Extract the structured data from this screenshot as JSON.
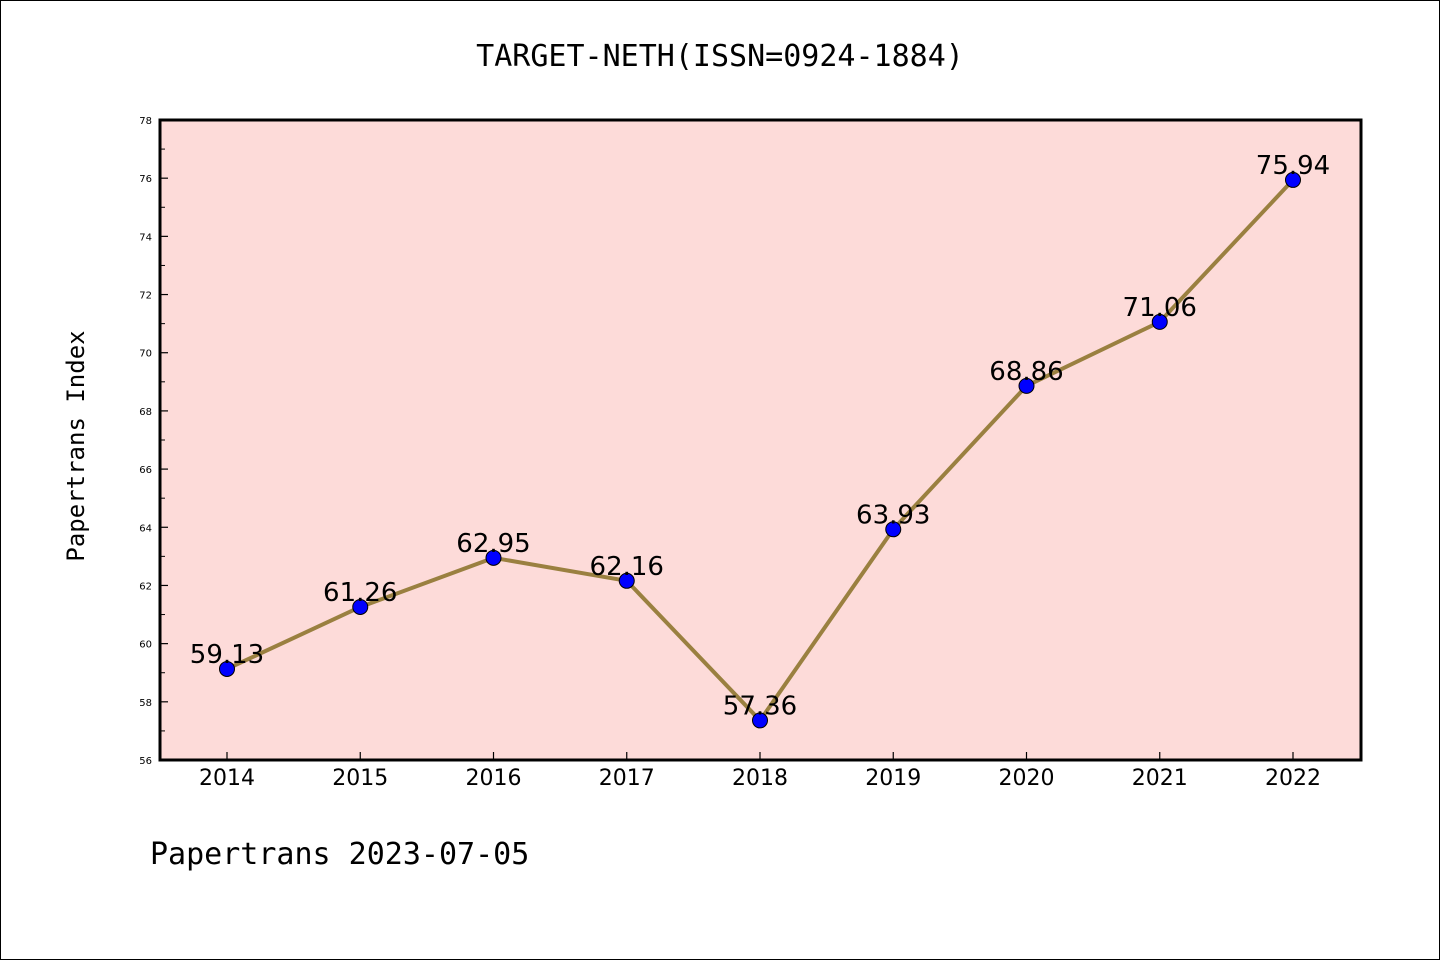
{
  "chart_data": {
    "type": "line",
    "title": "TARGET-NETH(ISSN=0924-1884)",
    "xlabel": "",
    "ylabel": "Papertrans Index",
    "categories": [
      "2014",
      "2015",
      "2016",
      "2017",
      "2018",
      "2019",
      "2020",
      "2021",
      "2022"
    ],
    "series": [
      {
        "values": [
          59.13,
          61.26,
          62.95,
          62.16,
          57.36,
          63.93,
          68.86,
          71.06,
          75.94
        ]
      }
    ],
    "data_labels": [
      "59.13",
      "61.26",
      "62.95",
      "62.16",
      "57.36",
      "63.93",
      "68.86",
      "71.06",
      "75.94"
    ],
    "ylim": [
      56,
      78
    ],
    "yticks": [
      "56",
      "58",
      "60",
      "62",
      "64",
      "66",
      "68",
      "70",
      "72",
      "74",
      "76",
      "78"
    ],
    "footer": "Papertrans 2023-07-05",
    "grid": false,
    "colors": {
      "plot_background": "#fddbd9",
      "line": "#9a8040",
      "marker": "#0000ff",
      "axis": "#000000"
    }
  }
}
